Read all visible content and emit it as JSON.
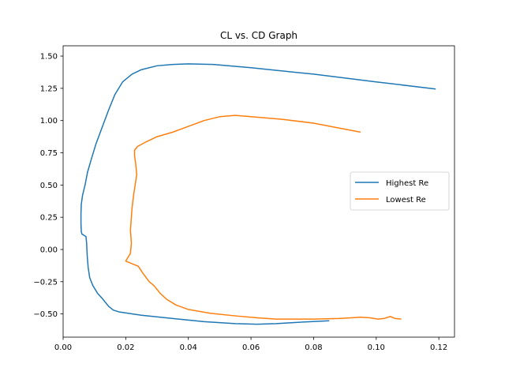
{
  "chart_data": {
    "type": "line",
    "title": "CL vs. CD Graph",
    "xlabel": "",
    "ylabel": "",
    "xlim": [
      0.0,
      0.125
    ],
    "ylim": [
      -0.68,
      1.58
    ],
    "xticks": [
      0.0,
      0.02,
      0.04,
      0.06,
      0.08,
      0.1,
      0.12
    ],
    "xtick_labels": [
      "0.00",
      "0.02",
      "0.04",
      "0.06",
      "0.08",
      "0.10",
      "0.12"
    ],
    "yticks": [
      -0.5,
      -0.25,
      0.0,
      0.25,
      0.5,
      0.75,
      1.0,
      1.25,
      1.5
    ],
    "ytick_labels": [
      "−0.50",
      "−0.25",
      "0.00",
      "0.25",
      "0.50",
      "0.75",
      "1.00",
      "1.25",
      "1.50"
    ],
    "grid": false,
    "legend_position": "center-right",
    "series": [
      {
        "name": "Highest Re",
        "color": "#1f77b4",
        "points": [
          [
            0.085,
            -0.553
          ],
          [
            0.075,
            -0.565
          ],
          [
            0.068,
            -0.575
          ],
          [
            0.062,
            -0.58
          ],
          [
            0.055,
            -0.575
          ],
          [
            0.045,
            -0.56
          ],
          [
            0.035,
            -0.535
          ],
          [
            0.025,
            -0.51
          ],
          [
            0.018,
            -0.485
          ],
          [
            0.016,
            -0.47
          ],
          [
            0.0145,
            -0.44
          ],
          [
            0.0125,
            -0.38
          ],
          [
            0.011,
            -0.34
          ],
          [
            0.0095,
            -0.28
          ],
          [
            0.0085,
            -0.22
          ],
          [
            0.008,
            -0.14
          ],
          [
            0.0077,
            -0.05
          ],
          [
            0.0075,
            0.05
          ],
          [
            0.0073,
            0.1
          ],
          [
            0.006,
            0.12
          ],
          [
            0.0058,
            0.14
          ],
          [
            0.0057,
            0.2
          ],
          [
            0.0057,
            0.28
          ],
          [
            0.0058,
            0.35
          ],
          [
            0.0062,
            0.42
          ],
          [
            0.007,
            0.5
          ],
          [
            0.0078,
            0.6
          ],
          [
            0.009,
            0.7
          ],
          [
            0.0105,
            0.82
          ],
          [
            0.0125,
            0.95
          ],
          [
            0.0145,
            1.08
          ],
          [
            0.0165,
            1.2
          ],
          [
            0.019,
            1.3
          ],
          [
            0.022,
            1.36
          ],
          [
            0.025,
            1.395
          ],
          [
            0.03,
            1.425
          ],
          [
            0.035,
            1.435
          ],
          [
            0.04,
            1.44
          ],
          [
            0.048,
            1.435
          ],
          [
            0.06,
            1.41
          ],
          [
            0.08,
            1.36
          ],
          [
            0.1,
            1.3
          ],
          [
            0.119,
            1.245
          ]
        ]
      },
      {
        "name": "Lowest Re",
        "color": "#ff7f0e",
        "points": [
          [
            0.108,
            -0.54
          ],
          [
            0.106,
            -0.535
          ],
          [
            0.1045,
            -0.52
          ],
          [
            0.1025,
            -0.535
          ],
          [
            0.1005,
            -0.54
          ],
          [
            0.098,
            -0.53
          ],
          [
            0.095,
            -0.525
          ],
          [
            0.092,
            -0.53
          ],
          [
            0.088,
            -0.535
          ],
          [
            0.08,
            -0.54
          ],
          [
            0.07,
            -0.54
          ],
          [
            0.068,
            -0.54
          ],
          [
            0.062,
            -0.53
          ],
          [
            0.055,
            -0.515
          ],
          [
            0.047,
            -0.495
          ],
          [
            0.04,
            -0.465
          ],
          [
            0.036,
            -0.43
          ],
          [
            0.033,
            -0.385
          ],
          [
            0.031,
            -0.34
          ],
          [
            0.029,
            -0.28
          ],
          [
            0.0275,
            -0.25
          ],
          [
            0.0255,
            -0.185
          ],
          [
            0.024,
            -0.13
          ],
          [
            0.02,
            -0.09
          ],
          [
            0.0215,
            -0.03
          ],
          [
            0.0218,
            0.05
          ],
          [
            0.0215,
            0.15
          ],
          [
            0.0218,
            0.25
          ],
          [
            0.022,
            0.32
          ],
          [
            0.0225,
            0.42
          ],
          [
            0.023,
            0.5
          ],
          [
            0.0235,
            0.58
          ],
          [
            0.0232,
            0.66
          ],
          [
            0.0228,
            0.73
          ],
          [
            0.0228,
            0.77
          ],
          [
            0.0238,
            0.8
          ],
          [
            0.0265,
            0.835
          ],
          [
            0.03,
            0.875
          ],
          [
            0.035,
            0.91
          ],
          [
            0.04,
            0.955
          ],
          [
            0.045,
            1.0
          ],
          [
            0.05,
            1.03
          ],
          [
            0.055,
            1.04
          ],
          [
            0.06,
            1.03
          ],
          [
            0.07,
            1.01
          ],
          [
            0.08,
            0.98
          ],
          [
            0.095,
            0.91
          ]
        ]
      }
    ]
  }
}
